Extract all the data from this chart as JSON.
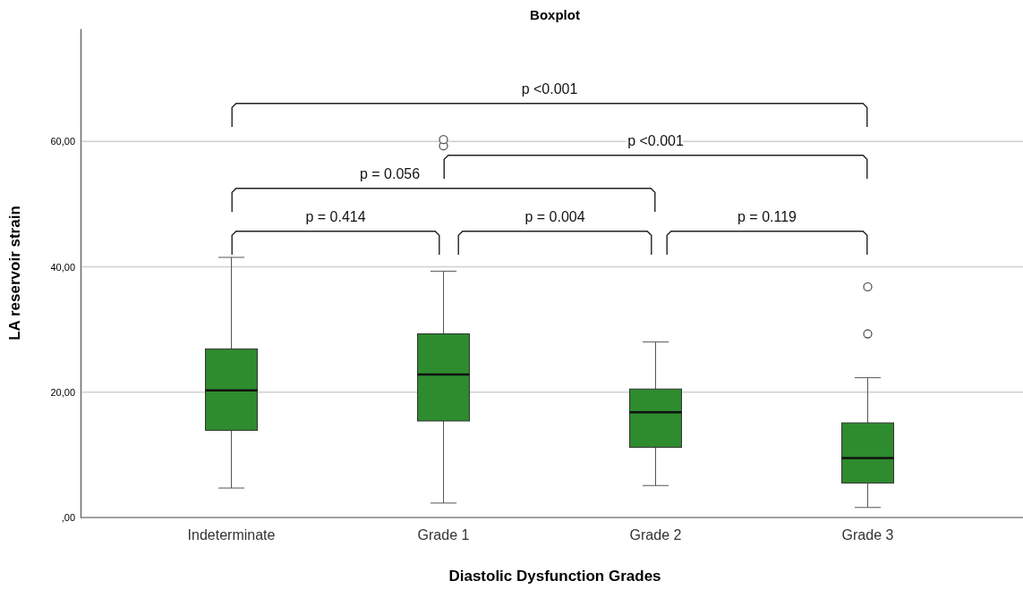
{
  "chart_data": {
    "type": "box",
    "title": "Boxplot",
    "xlabel": "Diastolic Dysfunction Grades",
    "ylabel": "LA reservoir strain",
    "categories": [
      "Indeterminate",
      "Grade 1",
      "Grade 2",
      "Grade 3"
    ],
    "color": "#2e8b2e",
    "boxes": [
      {
        "low": 4.7,
        "q1": 13.9,
        "median": 20.3,
        "q3": 26.9,
        "high": 41.5
      },
      {
        "low": 2.3,
        "q1": 15.4,
        "median": 22.8,
        "q3": 29.3,
        "high": 39.3,
        "outliers": [
          59.3,
          60.3
        ]
      },
      {
        "low": 5.1,
        "q1": 11.2,
        "median": 16.8,
        "q3": 20.5,
        "high": 28.0
      },
      {
        "low": 1.6,
        "q1": 5.5,
        "median": 9.5,
        "q3": 15.1,
        "high": 22.3,
        "outliers": [
          29.3,
          36.8
        ]
      }
    ],
    "ylim": [
      0,
      78
    ],
    "yticks": [
      {
        "value": 0,
        "label": ",00"
      },
      {
        "value": 20,
        "label": "20,00"
      },
      {
        "value": 40,
        "label": "40,00"
      },
      {
        "value": 60,
        "label": "60,00"
      }
    ],
    "grid": "y",
    "annotations": [
      "p <0.001",
      "p <0.001",
      "p = 0.056",
      "p = 0.414",
      "p = 0.004",
      "p = 0.119"
    ]
  }
}
